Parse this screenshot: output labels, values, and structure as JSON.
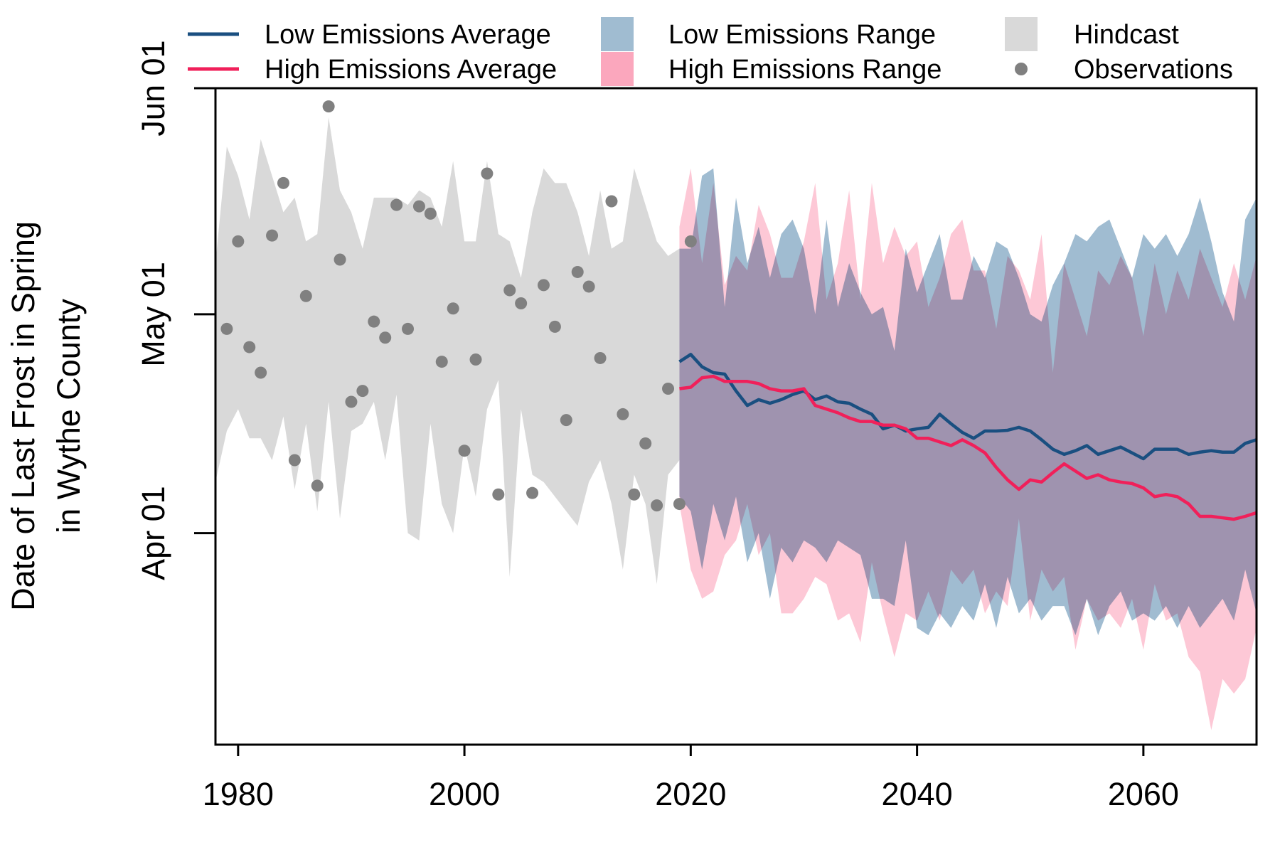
{
  "chart_data": {
    "type": "line",
    "title": "",
    "ylabel_lines": [
      "Date of Last Frost in Spring",
      "in Wythe County"
    ],
    "xlabel": "",
    "xlim": [
      1978,
      2070
    ],
    "ylim": [
      62,
      152
    ],
    "y_scale": "day of year",
    "x_ticks": [
      {
        "value": 1980,
        "label": "1980"
      },
      {
        "value": 2000,
        "label": "2000"
      },
      {
        "value": 2020,
        "label": "2020"
      },
      {
        "value": 2040,
        "label": "2040"
      },
      {
        "value": 2060,
        "label": "2060"
      }
    ],
    "y_ticks": [
      {
        "value": 91,
        "label": "Apr 01"
      },
      {
        "value": 121,
        "label": "May 01"
      },
      {
        "value": 152,
        "label": "Jun 01"
      }
    ],
    "grid": false,
    "legend_position": "top",
    "legend": [
      {
        "label": "Low Emissions Average",
        "kind": "line",
        "color": "#1a4f80"
      },
      {
        "label": "High Emissions Average",
        "kind": "line",
        "color": "#f0205a"
      },
      {
        "label": "Low Emissions Range",
        "kind": "area",
        "color": "#a0bcd1"
      },
      {
        "label": "High Emissions Range",
        "kind": "area",
        "color": "#fba7bd"
      },
      {
        "label": "Hindcast",
        "kind": "area",
        "color": "#d9d9d9"
      },
      {
        "label": "Observations",
        "kind": "point",
        "color": "#808080"
      }
    ],
    "series": [
      {
        "name": "Hindcast",
        "kind": "range",
        "color": "#d9d9d9",
        "x": [
          1978,
          1979,
          1980,
          1981,
          1982,
          1983,
          1984,
          1985,
          1986,
          1987,
          1988,
          1989,
          1990,
          1991,
          1992,
          1993,
          1994,
          1995,
          1996,
          1997,
          1998,
          1999,
          2000,
          2001,
          2002,
          2003,
          2004,
          2005,
          2006,
          2007,
          2008,
          2009,
          2010,
          2011,
          2012,
          2013,
          2014,
          2015,
          2016,
          2017,
          2018,
          2019
        ],
        "upper": [
          128,
          144,
          140,
          134,
          145,
          140,
          135,
          137,
          131,
          132,
          148,
          138,
          135,
          130,
          137,
          137,
          137,
          136,
          138,
          137,
          133,
          142,
          131,
          131,
          142,
          132,
          131,
          126,
          135,
          141,
          139,
          139,
          135,
          129,
          138,
          130,
          131,
          141,
          136,
          131,
          129,
          130
        ],
        "lower": [
          98,
          105,
          108,
          104,
          104,
          101,
          107,
          97,
          106,
          94,
          109,
          93,
          105,
          106,
          109,
          101,
          110,
          91,
          90,
          106,
          95,
          91,
          103,
          96,
          108,
          112,
          85,
          108,
          99,
          98,
          96,
          94,
          92,
          98,
          101,
          95,
          86,
          99,
          95,
          84,
          99,
          101
        ]
      },
      {
        "name": "Low Emissions Range",
        "kind": "range",
        "color": "#a0bcd1",
        "x": [
          2019,
          2020,
          2021,
          2022,
          2023,
          2024,
          2025,
          2026,
          2027,
          2028,
          2029,
          2030,
          2031,
          2032,
          2033,
          2034,
          2035,
          2036,
          2037,
          2038,
          2039,
          2040,
          2041,
          2042,
          2043,
          2044,
          2045,
          2046,
          2047,
          2048,
          2049,
          2050,
          2051,
          2052,
          2053,
          2054,
          2055,
          2056,
          2057,
          2058,
          2059,
          2060,
          2061,
          2062,
          2063,
          2064,
          2065,
          2066,
          2067,
          2068,
          2069,
          2070
        ],
        "upper": [
          130,
          130,
          140,
          141,
          122,
          137,
          128,
          133,
          126,
          132,
          134,
          130,
          121,
          134,
          122,
          128,
          124,
          121,
          122,
          116,
          130,
          124,
          128,
          132,
          123,
          123,
          129,
          126,
          131,
          130,
          126,
          121,
          120,
          125,
          128,
          132,
          131,
          133,
          134,
          130,
          126,
          132,
          130,
          132,
          129,
          132,
          137,
          131,
          124,
          120,
          134,
          137
        ],
        "lower": [
          96,
          94,
          86,
          95,
          90,
          96,
          87,
          91,
          82,
          89,
          87,
          90,
          89,
          87,
          90,
          89,
          88,
          82,
          82,
          81,
          90,
          78,
          77,
          80,
          78,
          81,
          79,
          84,
          78,
          85,
          80,
          82,
          79,
          81,
          81,
          77,
          82,
          77,
          81,
          83,
          79,
          80,
          79,
          81,
          78,
          81,
          78,
          80,
          82,
          79,
          86,
          80
        ]
      },
      {
        "name": "High Emissions Range",
        "kind": "range",
        "color": "#fba7bd",
        "x": [
          2019,
          2020,
          2021,
          2022,
          2023,
          2024,
          2025,
          2026,
          2027,
          2028,
          2029,
          2030,
          2031,
          2032,
          2033,
          2034,
          2035,
          2036,
          2037,
          2038,
          2039,
          2040,
          2041,
          2042,
          2043,
          2044,
          2045,
          2046,
          2047,
          2048,
          2049,
          2050,
          2051,
          2052,
          2053,
          2054,
          2055,
          2056,
          2057,
          2058,
          2059,
          2060,
          2061,
          2062,
          2063,
          2064,
          2065,
          2066,
          2067,
          2068,
          2069,
          2070
        ],
        "upper": [
          133,
          141,
          128,
          139,
          125,
          129,
          127,
          136,
          132,
          126,
          126,
          131,
          139,
          123,
          128,
          138,
          123,
          139,
          128,
          133,
          129,
          131,
          122,
          126,
          132,
          134,
          127,
          127,
          119,
          129,
          127,
          123,
          132,
          113,
          128,
          123,
          118,
          127,
          125,
          129,
          126,
          118,
          128,
          121,
          127,
          123,
          130,
          126,
          122,
          128,
          123,
          129
        ],
        "lower": [
          95,
          86,
          82,
          83,
          88,
          90,
          95,
          88,
          91,
          80,
          80,
          82,
          85,
          84,
          79,
          80,
          76,
          87,
          80,
          74,
          80,
          79,
          83,
          79,
          86,
          84,
          86,
          80,
          83,
          81,
          93,
          79,
          86,
          83,
          85,
          75,
          82,
          79,
          80,
          78,
          82,
          75,
          84,
          79,
          80,
          74,
          72,
          64,
          71,
          69,
          71,
          78
        ]
      },
      {
        "name": "Low Emissions Average",
        "kind": "line",
        "color": "#1a4f80",
        "x": [
          2019,
          2020,
          2021,
          2022,
          2023,
          2024,
          2025,
          2026,
          2027,
          2028,
          2029,
          2030,
          2031,
          2032,
          2033,
          2034,
          2035,
          2036,
          2037,
          2038,
          2039,
          2040,
          2041,
          2042,
          2043,
          2044,
          2045,
          2046,
          2047,
          2048,
          2049,
          2050,
          2051,
          2052,
          2053,
          2054,
          2055,
          2056,
          2057,
          2058,
          2059,
          2060,
          2061,
          2062,
          2063,
          2064,
          2065,
          2066,
          2067,
          2068,
          2069,
          2070
        ],
        "y": [
          114.5,
          115.5,
          113.8,
          113,
          112.8,
          110.5,
          108.5,
          109.3,
          108.8,
          109.3,
          110,
          110.5,
          109.3,
          109.8,
          109,
          108.8,
          108,
          107.3,
          105.3,
          105.8,
          105,
          105.3,
          105.5,
          107.3,
          106,
          104.8,
          104,
          105,
          105,
          105.1,
          105.5,
          105,
          103.8,
          102.5,
          101.8,
          102.3,
          103,
          101.8,
          102.3,
          102.8,
          102,
          101.2,
          102.5,
          102.5,
          102.5,
          101.8,
          102.1,
          102.3,
          102.1,
          102.1,
          103.3,
          103.8
        ]
      },
      {
        "name": "High Emissions Average",
        "kind": "line",
        "color": "#f0205a",
        "x": [
          2019,
          2020,
          2021,
          2022,
          2023,
          2024,
          2025,
          2026,
          2027,
          2028,
          2029,
          2030,
          2031,
          2032,
          2033,
          2034,
          2035,
          2036,
          2037,
          2038,
          2039,
          2040,
          2041,
          2042,
          2043,
          2044,
          2045,
          2046,
          2047,
          2048,
          2049,
          2050,
          2051,
          2052,
          2053,
          2054,
          2055,
          2056,
          2057,
          2058,
          2059,
          2060,
          2061,
          2062,
          2063,
          2064,
          2065,
          2066,
          2067,
          2068,
          2069,
          2070
        ],
        "y": [
          110.8,
          111,
          112.3,
          112.5,
          111.8,
          111.8,
          111.8,
          111.5,
          110.8,
          110.5,
          110.5,
          110.8,
          108.5,
          108,
          107.5,
          106.8,
          106.3,
          106.3,
          105.8,
          105.8,
          105.3,
          104,
          104,
          103.5,
          103,
          103.8,
          103,
          102,
          100,
          98.3,
          97,
          98.3,
          98,
          99.3,
          100.5,
          99.5,
          98.5,
          99,
          98.3,
          98,
          97.8,
          97.2,
          96,
          96.3,
          96,
          95,
          93.3,
          93.3,
          93.1,
          92.9,
          93.3,
          93.8
        ]
      },
      {
        "name": "Observations",
        "kind": "scatter",
        "color": "#808080",
        "x": [
          1979,
          1980,
          1981,
          1982,
          1983,
          1984,
          1985,
          1986,
          1987,
          1988,
          1989,
          1990,
          1991,
          1992,
          1993,
          1994,
          1995,
          1996,
          1997,
          1998,
          1999,
          2000,
          2001,
          2002,
          2003,
          2004,
          2005,
          2006,
          2007,
          2008,
          2009,
          2010,
          2011,
          2012,
          2013,
          2014,
          2015,
          2016,
          2017,
          2018,
          2019,
          2020
        ],
        "y": [
          119,
          131,
          116.5,
          113,
          131.8,
          139,
          101,
          123.5,
          97.5,
          149.5,
          128.5,
          109,
          110.5,
          120,
          117.8,
          136,
          119,
          135.8,
          134.8,
          114.5,
          121.8,
          102.3,
          114.8,
          140.3,
          96.3,
          124.3,
          122.5,
          96.5,
          125,
          119.3,
          106.5,
          126.8,
          124.8,
          115,
          136.5,
          107.3,
          96.3,
          103.3,
          94.8,
          110.8,
          95,
          131
        ]
      }
    ]
  }
}
